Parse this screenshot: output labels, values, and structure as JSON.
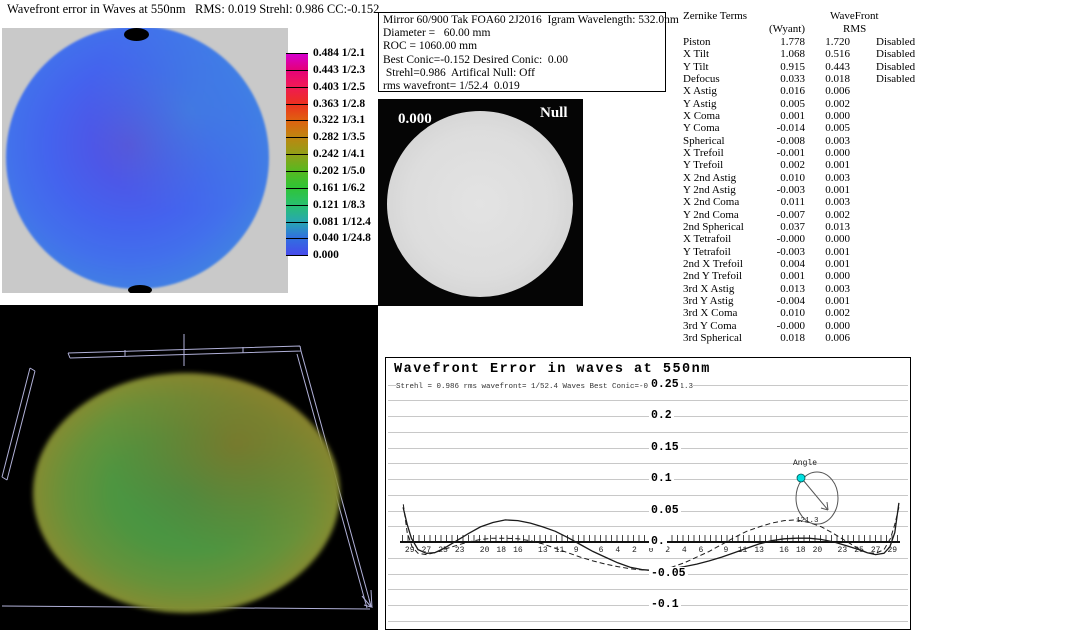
{
  "wavefront_map": {
    "title": "Wavefront error in Waves at 550nm   RMS: 0.019 Strehl: 0.986 CC:-0.152",
    "colorbar": {
      "entries": [
        {
          "value": "0.484",
          "fraction": "1/2.1"
        },
        {
          "value": "0.443",
          "fraction": "1/2.3"
        },
        {
          "value": "0.403",
          "fraction": "1/2.5"
        },
        {
          "value": "0.363",
          "fraction": "1/2.8"
        },
        {
          "value": "0.322",
          "fraction": "1/3.1"
        },
        {
          "value": "0.282",
          "fraction": "1/3.5"
        },
        {
          "value": "0.242",
          "fraction": "1/4.1"
        },
        {
          "value": "0.202",
          "fraction": "1/5.0"
        },
        {
          "value": "0.161",
          "fraction": "1/6.2"
        },
        {
          "value": "0.121",
          "fraction": "1/8.3"
        },
        {
          "value": "0.081",
          "fraction": "1/12.4"
        },
        {
          "value": "0.040",
          "fraction": "1/24.8"
        },
        {
          "value": "0.000",
          "fraction": ""
        }
      ]
    }
  },
  "info_box": {
    "lines": [
      "Mirror 60/900 Tak FOA60 2J2016  Igram Wavelength: 532.0nm",
      "Diameter =   60.00 mm",
      "ROC = 1060.00 mm",
      "Best Conic=-0.152 Desired Conic:  0.00",
      " Strehl=0.986  Artifical Null: Off",
      "rms wavefront= 1/52.4  0.019"
    ]
  },
  "igram": {
    "value_label": "0.000",
    "null_label": "Null"
  },
  "zernike_table": {
    "title": "Zernike Terms",
    "col_wyant": "(Wyant)",
    "col_wavefront": "WaveFront",
    "col_rms": "RMS",
    "rows": [
      {
        "term": "Piston",
        "wyant": "1.778",
        "rms": "1.720",
        "status": "Disabled"
      },
      {
        "term": "X Tilt",
        "wyant": "1.068",
        "rms": "0.516",
        "status": "Disabled"
      },
      {
        "term": "Y Tilt",
        "wyant": "0.915",
        "rms": "0.443",
        "status": "Disabled"
      },
      {
        "term": "Defocus",
        "wyant": "0.033",
        "rms": "0.018",
        "status": "Disabled"
      },
      {
        "term": "X Astig",
        "wyant": "0.016",
        "rms": "0.006",
        "status": ""
      },
      {
        "term": "Y Astig",
        "wyant": "0.005",
        "rms": "0.002",
        "status": ""
      },
      {
        "term": "X Coma",
        "wyant": "0.001",
        "rms": "0.000",
        "status": ""
      },
      {
        "term": "Y Coma",
        "wyant": "-0.014",
        "rms": "0.005",
        "status": ""
      },
      {
        "term": "Spherical",
        "wyant": "-0.008",
        "rms": "0.003",
        "status": ""
      },
      {
        "term": "X Trefoil",
        "wyant": "-0.001",
        "rms": "0.000",
        "status": ""
      },
      {
        "term": "Y Trefoil",
        "wyant": "0.002",
        "rms": "0.001",
        "status": ""
      },
      {
        "term": "X 2nd Astig",
        "wyant": "0.010",
        "rms": "0.003",
        "status": ""
      },
      {
        "term": "Y 2nd Astig",
        "wyant": "-0.003",
        "rms": "0.001",
        "status": ""
      },
      {
        "term": "X 2nd Coma",
        "wyant": "0.011",
        "rms": "0.003",
        "status": ""
      },
      {
        "term": "Y 2nd Coma",
        "wyant": "-0.007",
        "rms": "0.002",
        "status": ""
      },
      {
        "term": "2nd Spherical",
        "wyant": "0.037",
        "rms": "0.013",
        "status": ""
      },
      {
        "term": "X Tetrafoil",
        "wyant": "-0.000",
        "rms": "0.000",
        "status": ""
      },
      {
        "term": "Y Tetrafoil",
        "wyant": "-0.003",
        "rms": "0.001",
        "status": ""
      },
      {
        "term": "2nd X Trefoil",
        "wyant": "0.004",
        "rms": "0.001",
        "status": ""
      },
      {
        "term": "2nd Y Trefoil",
        "wyant": "0.001",
        "rms": "0.000",
        "status": ""
      },
      {
        "term": "3rd X Astig",
        "wyant": "0.013",
        "rms": "0.003",
        "status": ""
      },
      {
        "term": "3rd Y Astig",
        "wyant": "-0.004",
        "rms": "0.001",
        "status": ""
      },
      {
        "term": "3rd X Coma",
        "wyant": "0.010",
        "rms": "0.002",
        "status": ""
      },
      {
        "term": "3rd Y Coma",
        "wyant": "-0.000",
        "rms": "0.000",
        "status": ""
      },
      {
        "term": "3rd Spherical",
        "wyant": "0.018",
        "rms": "0.006",
        "status": ""
      }
    ]
  },
  "chart_data": {
    "type": "line",
    "title": "Wavefront Error in waves at 550nm",
    "subtitle": "Strehl = 0.986 rms wavefront= 1/52.4 Waves Best Conic=-0.152 121.3",
    "ylabel_ticks": [
      {
        "label": "0.25",
        "value": 0.25
      },
      {
        "label": "0.2",
        "value": 0.2
      },
      {
        "label": "0.15",
        "value": 0.15
      },
      {
        "label": "0.1",
        "value": 0.1
      },
      {
        "label": "0.05",
        "value": 0.05
      },
      {
        "label": "0.",
        "value": 0
      },
      {
        "label": "-0.05",
        "value": -0.05
      },
      {
        "label": "-0.1",
        "value": -0.1
      }
    ],
    "x_tick_values": [
      -29,
      -27,
      -25,
      -23,
      -20,
      -18,
      -16,
      -13,
      -11,
      -9,
      -6,
      -4,
      -2,
      0,
      2,
      4,
      6,
      9,
      11,
      13,
      16,
      18,
      20,
      23,
      25,
      27,
      29
    ],
    "xlim": [
      -30,
      30
    ],
    "ylim": [
      -0.135,
      0.275
    ],
    "grid": "horizontal gridlines every 0.025 waves",
    "series": [
      {
        "name": "profile",
        "style": "solid",
        "points": [
          [
            -29.8,
            0.055
          ],
          [
            -29.3,
            0.028
          ],
          [
            -28.8,
            0.006
          ],
          [
            -28,
            -0.012
          ],
          [
            -27,
            -0.018
          ],
          [
            -26,
            -0.017
          ],
          [
            -25,
            -0.011
          ],
          [
            -23.5,
            0.001
          ],
          [
            -22,
            0.013
          ],
          [
            -20.5,
            0.024
          ],
          [
            -19,
            0.031
          ],
          [
            -17.5,
            0.035
          ],
          [
            -16,
            0.034
          ],
          [
            -14.5,
            0.03
          ],
          [
            -13,
            0.024
          ],
          [
            -11.5,
            0.017
          ],
          [
            -10,
            0.007
          ],
          [
            -8.5,
            -0.004
          ],
          [
            -7,
            -0.015
          ],
          [
            -5.5,
            -0.024
          ],
          [
            -4,
            -0.033
          ],
          [
            -2.5,
            -0.04
          ],
          [
            -1,
            -0.044
          ],
          [
            0,
            -0.045
          ],
          [
            1,
            -0.0445
          ],
          [
            2.5,
            -0.0425
          ],
          [
            4,
            -0.039
          ],
          [
            5.5,
            -0.035
          ],
          [
            7,
            -0.03
          ],
          [
            8.5,
            -0.024
          ],
          [
            10,
            -0.017
          ],
          [
            11.5,
            -0.01
          ],
          [
            13,
            -0.003
          ],
          [
            14.5,
            0.002
          ],
          [
            16,
            0.005
          ],
          [
            17.5,
            0.006
          ],
          [
            19,
            0.006
          ],
          [
            20.5,
            0.004
          ],
          [
            22,
            0.0
          ],
          [
            23.5,
            -0.006
          ],
          [
            25,
            -0.012
          ],
          [
            26,
            -0.017
          ],
          [
            27,
            -0.02
          ],
          [
            28,
            -0.018
          ],
          [
            28.7,
            -0.008
          ],
          [
            29.3,
            0.015
          ],
          [
            29.8,
            0.062
          ]
        ]
      },
      {
        "name": "profile-mirrored",
        "style": "dashed",
        "mirror_x_of": "profile"
      }
    ],
    "angle_control": {
      "label": "Angle",
      "value": "121.3"
    }
  }
}
